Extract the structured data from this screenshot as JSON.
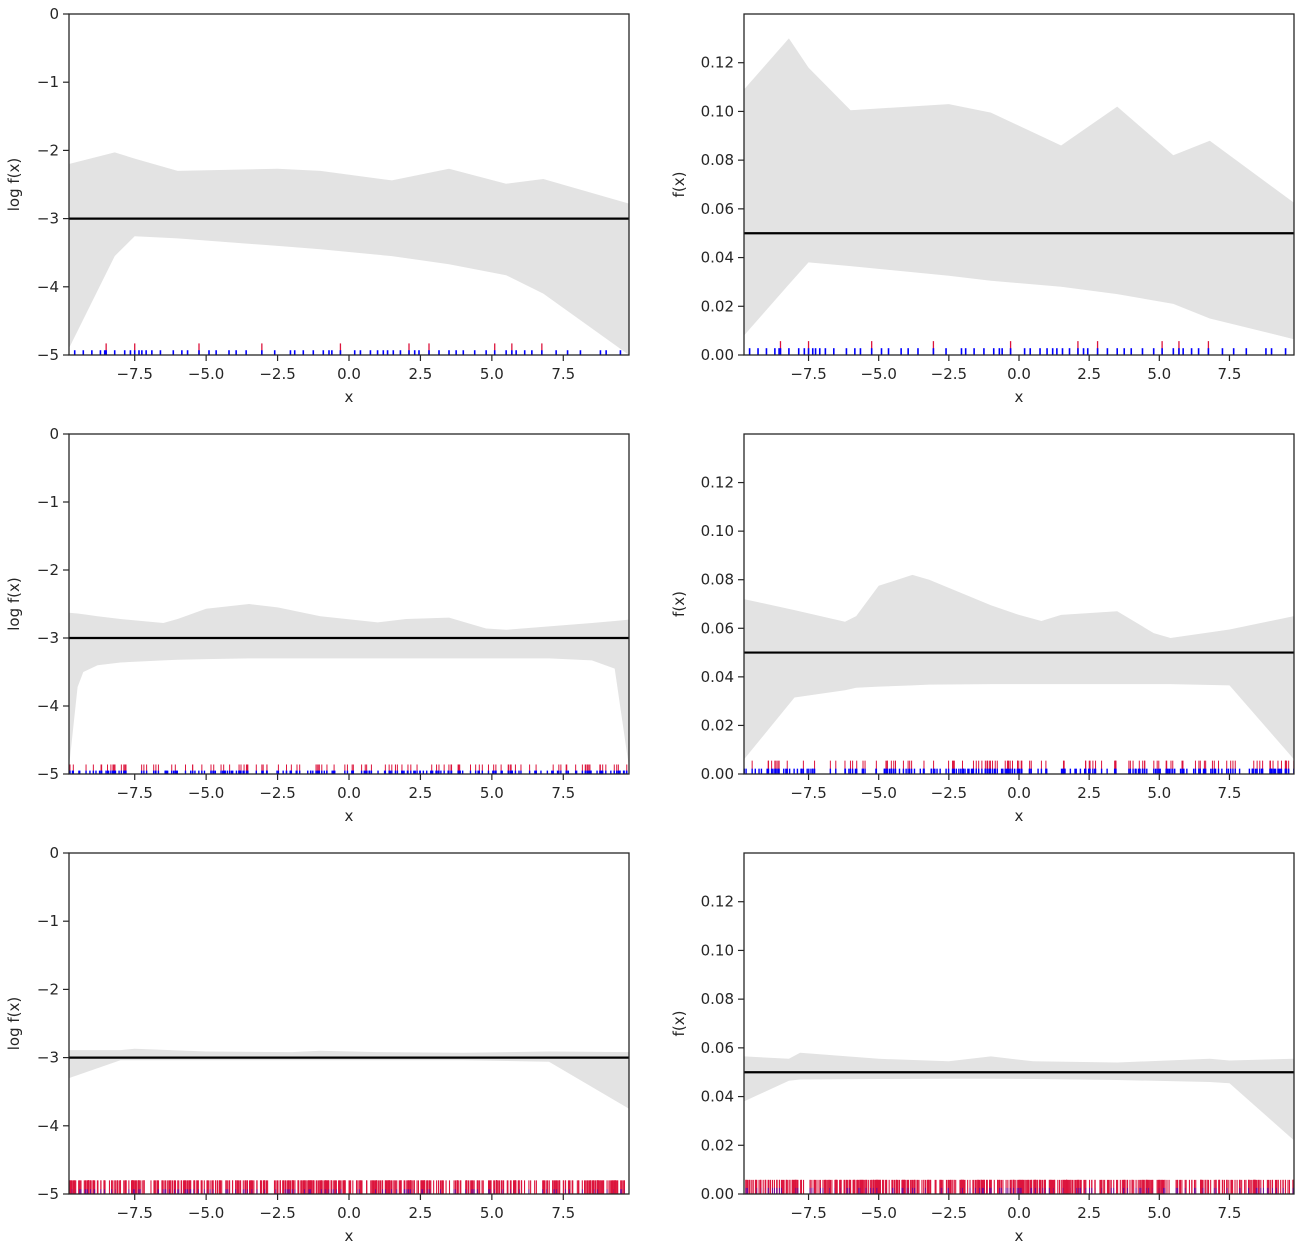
{
  "colors": {
    "band": "#e3e3e3",
    "line": "#000000",
    "rug_primary": "#0000ff",
    "rug_secondary": "#dc143c",
    "axes": "#262626"
  },
  "chart_data": [
    {
      "type": "area",
      "panel": "row1-left",
      "xlabel": "x",
      "ylabel": "log f(x)",
      "xlim": [
        -9.8,
        9.8
      ],
      "ylim": [
        -5,
        0
      ],
      "xticks": [
        "−7.5",
        "−5.0",
        "−2.5",
        "0.0",
        "2.5",
        "5.0",
        "7.5"
      ],
      "yticks": [
        "0",
        "−1",
        "−2",
        "−3",
        "−4",
        "−5"
      ],
      "reference_line": -3.0,
      "band": {
        "x": [
          -9.8,
          -8.2,
          -7.5,
          -6.0,
          -2.5,
          -1.0,
          1.5,
          3.5,
          5.5,
          6.8,
          9.8
        ],
        "upper": [
          -2.2,
          -2.03,
          -2.12,
          -2.3,
          -2.27,
          -2.3,
          -2.44,
          -2.27,
          -2.49,
          -2.42,
          -2.78
        ],
        "lower": [
          -4.9,
          -3.55,
          -3.26,
          -3.29,
          -3.4,
          -3.45,
          -3.55,
          -3.67,
          -3.83,
          -4.1,
          -5.0
        ]
      },
      "rug": {
        "levels": [
          -4.83,
          -4.93
        ],
        "x": [
          -9.6,
          -9.3,
          -9.0,
          -8.7,
          -8.55,
          -8.5,
          -8.2,
          -7.85,
          -7.65,
          -7.5,
          -7.35,
          -7.25,
          -7.1,
          -6.9,
          -6.6,
          -6.15,
          -5.85,
          -5.65,
          -5.25,
          -4.9,
          -4.65,
          -4.2,
          -3.95,
          -3.6,
          -3.05,
          -2.6,
          -2.05,
          -1.9,
          -1.6,
          -1.25,
          -0.9,
          -0.7,
          -0.6,
          -0.3,
          0.2,
          0.4,
          0.75,
          1.0,
          1.2,
          1.35,
          1.55,
          1.8,
          2.1,
          2.3,
          2.45,
          2.8,
          3.15,
          3.5,
          3.75,
          4.0,
          4.4,
          4.8,
          5.1,
          5.5,
          5.7,
          5.85,
          6.15,
          6.4,
          6.75,
          7.25,
          7.65,
          8.1,
          8.8,
          9.0,
          9.5
        ],
        "secondary_idx": [
          5,
          9,
          18,
          24,
          33,
          42,
          45,
          52,
          54,
          58
        ]
      }
    },
    {
      "type": "area",
      "panel": "row1-right",
      "xlabel": "x",
      "ylabel": "f(x)",
      "xlim": [
        -9.8,
        9.8
      ],
      "ylim": [
        0,
        0.14
      ],
      "xticks": [
        "−7.5",
        "−5.0",
        "−2.5",
        "0.0",
        "2.5",
        "5.0",
        "7.5"
      ],
      "yticks": [
        "0.00",
        "0.02",
        "0.04",
        "0.06",
        "0.08",
        "0.10",
        "0.12"
      ],
      "reference_line": 0.05,
      "band": {
        "x": [
          -9.8,
          -8.2,
          -7.5,
          -6.0,
          -2.5,
          -1.0,
          1.5,
          3.5,
          5.5,
          6.8,
          9.8
        ],
        "upper": [
          0.109,
          0.13,
          0.118,
          0.1005,
          0.103,
          0.0995,
          0.086,
          0.102,
          0.082,
          0.088,
          0.0625
        ],
        "lower": [
          0.008,
          0.029,
          0.038,
          0.0365,
          0.0325,
          0.0305,
          0.028,
          0.025,
          0.021,
          0.015,
          0.0065
        ]
      },
      "rug": {
        "levels": [
          0.0057,
          0.0028
        ],
        "x": [
          -9.6,
          -9.3,
          -9.0,
          -8.7,
          -8.55,
          -8.5,
          -8.2,
          -7.85,
          -7.65,
          -7.5,
          -7.35,
          -7.25,
          -7.1,
          -6.9,
          -6.6,
          -6.15,
          -5.85,
          -5.65,
          -5.25,
          -4.9,
          -4.65,
          -4.2,
          -3.95,
          -3.6,
          -3.05,
          -2.6,
          -2.05,
          -1.9,
          -1.6,
          -1.25,
          -0.9,
          -0.7,
          -0.6,
          -0.3,
          0.2,
          0.4,
          0.75,
          1.0,
          1.2,
          1.35,
          1.55,
          1.8,
          2.1,
          2.3,
          2.45,
          2.8,
          3.15,
          3.5,
          3.75,
          4.0,
          4.4,
          4.8,
          5.1,
          5.5,
          5.7,
          5.85,
          6.15,
          6.4,
          6.75,
          7.25,
          7.65,
          8.1,
          8.8,
          9.0,
          9.5
        ],
        "secondary_idx": [
          5,
          9,
          18,
          24,
          33,
          42,
          45,
          52,
          54,
          58
        ]
      }
    },
    {
      "type": "area",
      "panel": "row2-left",
      "xlabel": "x",
      "ylabel": "log f(x)",
      "xlim": [
        -9.8,
        9.8
      ],
      "ylim": [
        -5,
        0
      ],
      "xticks": [
        "−7.5",
        "−5.0",
        "−2.5",
        "0.0",
        "2.5",
        "5.0",
        "7.5"
      ],
      "yticks": [
        "0",
        "−1",
        "−2",
        "−3",
        "−4",
        "−5"
      ],
      "reference_line": -3.0,
      "band": {
        "x": [
          -9.8,
          -9.5,
          -9.3,
          -8.8,
          -8.0,
          -6.5,
          -6.0,
          -5.0,
          -3.5,
          -2.5,
          -1.0,
          1.0,
          2.0,
          3.5,
          4.8,
          5.5,
          7.0,
          8.5,
          9.3,
          9.8
        ],
        "upper": [
          -2.63,
          -2.64,
          -2.65,
          -2.68,
          -2.72,
          -2.78,
          -2.72,
          -2.57,
          -2.5,
          -2.55,
          -2.68,
          -2.77,
          -2.72,
          -2.7,
          -2.86,
          -2.88,
          -2.83,
          -2.78,
          -2.75,
          -2.73
        ],
        "lower": [
          -4.9,
          -3.72,
          -3.5,
          -3.4,
          -3.36,
          -3.33,
          -3.32,
          -3.31,
          -3.3,
          -3.3,
          -3.3,
          -3.3,
          -3.3,
          -3.3,
          -3.3,
          -3.3,
          -3.3,
          -3.33,
          -3.45,
          -4.9
        ]
      },
      "rug": {
        "levels": [
          -4.86,
          -4.95
        ],
        "count": 240,
        "secondary_every": 2
      }
    },
    {
      "type": "area",
      "panel": "row2-right",
      "xlabel": "x",
      "ylabel": "f(x)",
      "xlim": [
        -9.8,
        9.8
      ],
      "ylim": [
        0,
        0.14
      ],
      "xticks": [
        "−7.5",
        "−5.0",
        "−2.5",
        "0.0",
        "2.5",
        "5.0",
        "7.5"
      ],
      "yticks": [
        "0.00",
        "0.02",
        "0.04",
        "0.06",
        "0.08",
        "0.10",
        "0.12"
      ],
      "reference_line": 0.05,
      "band": {
        "x": [
          -9.8,
          -8.0,
          -6.2,
          -5.8,
          -5.0,
          -3.8,
          -3.2,
          -1.0,
          0.0,
          0.8,
          1.5,
          3.5,
          4.8,
          5.4,
          7.5,
          9.8
        ],
        "upper": [
          0.072,
          0.0675,
          0.0627,
          0.065,
          0.0775,
          0.082,
          0.08,
          0.0695,
          0.0655,
          0.063,
          0.0655,
          0.067,
          0.058,
          0.056,
          0.0595,
          0.065
        ],
        "lower": [
          0.006,
          0.0315,
          0.0345,
          0.0355,
          0.036,
          0.0365,
          0.0368,
          0.037,
          0.037,
          0.037,
          0.037,
          0.037,
          0.037,
          0.037,
          0.0365,
          0.006
        ]
      },
      "rug": {
        "levels": [
          0.0055,
          0.0022
        ],
        "count": 240,
        "secondary_every": 2
      }
    },
    {
      "type": "area",
      "panel": "row3-left",
      "xlabel": "x",
      "ylabel": "log f(x)",
      "xlim": [
        -9.8,
        9.8
      ],
      "ylim": [
        -5,
        0
      ],
      "xticks": [
        "−7.5",
        "−5.0",
        "−2.5",
        "0.0",
        "2.5",
        "5.0",
        "7.5"
      ],
      "yticks": [
        "0",
        "−1",
        "−2",
        "−3",
        "−4",
        "−5"
      ],
      "reference_line": -3.0,
      "band": {
        "x": [
          -9.8,
          -8.0,
          -7.5,
          -5.0,
          -2.0,
          -1.0,
          1.0,
          4.0,
          7.0,
          9.8
        ],
        "upper": [
          -2.89,
          -2.89,
          -2.87,
          -2.91,
          -2.92,
          -2.9,
          -2.92,
          -2.93,
          -2.91,
          -2.92
        ],
        "lower": [
          -3.3,
          -3.04,
          -3.04,
          -3.04,
          -3.04,
          -3.04,
          -3.04,
          -3.04,
          -3.06,
          -3.75
        ]
      },
      "rug": {
        "levels": [
          -4.8,
          -4.93
        ],
        "count": 520,
        "secondary_every": 1
      }
    },
    {
      "type": "area",
      "panel": "row3-right",
      "xlabel": "x",
      "ylabel": "f(x)",
      "xlim": [
        -9.8,
        9.8
      ],
      "ylim": [
        0,
        0.14
      ],
      "xticks": [
        "−7.5",
        "−5.0",
        "−2.5",
        "0.0",
        "2.5",
        "5.0",
        "7.5"
      ],
      "yticks": [
        "0.00",
        "0.02",
        "0.04",
        "0.06",
        "0.08",
        "0.10",
        "0.12"
      ],
      "reference_line": 0.05,
      "band": {
        "x": [
          -9.8,
          -8.2,
          -7.8,
          -5.0,
          -2.5,
          -1.0,
          0.5,
          3.5,
          6.8,
          7.5,
          9.8
        ],
        "upper": [
          0.0565,
          0.0555,
          0.058,
          0.0555,
          0.0545,
          0.0565,
          0.0545,
          0.054,
          0.0555,
          0.0548,
          0.0555
        ],
        "lower": [
          0.038,
          0.0465,
          0.047,
          0.0472,
          0.0473,
          0.0473,
          0.0472,
          0.0468,
          0.046,
          0.0455,
          0.022
        ]
      },
      "rug": {
        "levels": [
          0.0058,
          0.0025
        ],
        "count": 520,
        "secondary_every": 1
      }
    }
  ]
}
